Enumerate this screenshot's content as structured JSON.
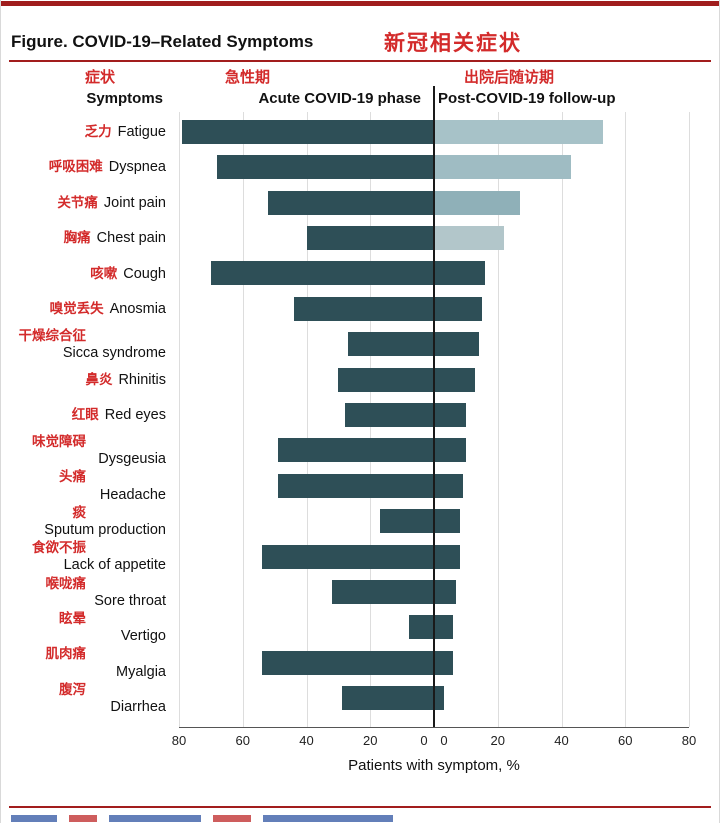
{
  "figure": {
    "title_en": "Figure. COVID-19–Related Symptoms",
    "title_zh": "新冠相关症状"
  },
  "headers": {
    "symptoms_zh": "症状",
    "symptoms_en": "Symptoms",
    "acute_zh": "急性期",
    "acute_en": "Acute COVID-19 phase",
    "followup_zh": "出院后随访期",
    "followup_en": "Post-COVID-19 follow-up"
  },
  "colors": {
    "accent_red": "#a21d1d",
    "chinese_red": "#d32b2b",
    "acute_bar": "#2e4f57",
    "axis": "#1a1a1a",
    "gridline": "#dddddd"
  },
  "chart_data": {
    "type": "bar",
    "orientation": "horizontal-diverging",
    "title": "Figure. COVID-19–Related Symptoms",
    "title_zh": "新冠相关症状",
    "xlabel": "Patients with symptom, %",
    "axis_max": 80,
    "x_ticks_left": [
      80,
      60,
      40,
      20,
      0
    ],
    "x_ticks_right": [
      0,
      20,
      40,
      60,
      80
    ],
    "series": [
      "Acute COVID-19 phase",
      "Post-COVID-19 follow-up"
    ],
    "grid": true,
    "rows": [
      {
        "zh": "乏力",
        "en": "Fatigue",
        "acute": 79,
        "followup": 53,
        "followup_color": "#a7c2c8",
        "stacked": false
      },
      {
        "zh": "呼吸困难",
        "en": "Dyspnea",
        "acute": 68,
        "followup": 43,
        "followup_color": "#9fbcc3",
        "stacked": false
      },
      {
        "zh": "关节痛",
        "en": "Joint pain",
        "acute": 52,
        "followup": 27,
        "followup_color": "#8fb0b8",
        "stacked": false
      },
      {
        "zh": "胸痛",
        "en": "Chest pain",
        "acute": 40,
        "followup": 22,
        "followup_color": "#b2c6ca",
        "stacked": false
      },
      {
        "zh": "咳嗽",
        "en": "Cough",
        "acute": 70,
        "followup": 16,
        "followup_color": "#2e4f57",
        "stacked": false
      },
      {
        "zh": "嗅觉丢失",
        "en": "Anosmia",
        "acute": 44,
        "followup": 15,
        "followup_color": "#2e4f57",
        "stacked": false
      },
      {
        "zh": "干燥综合征",
        "en": "Sicca syndrome",
        "acute": 27,
        "followup": 14,
        "followup_color": "#2e4f57",
        "stacked": true
      },
      {
        "zh": "鼻炎",
        "en": "Rhinitis",
        "acute": 30,
        "followup": 13,
        "followup_color": "#2e4f57",
        "stacked": false
      },
      {
        "zh": "红眼",
        "en": "Red eyes",
        "acute": 28,
        "followup": 10,
        "followup_color": "#2e4f57",
        "stacked": false
      },
      {
        "zh": "味觉障碍",
        "en": "Dysgeusia",
        "acute": 49,
        "followup": 10,
        "followup_color": "#2e4f57",
        "stacked": true
      },
      {
        "zh": "头痛",
        "en": "Headache",
        "acute": 49,
        "followup": 9,
        "followup_color": "#2e4f57",
        "stacked": true
      },
      {
        "zh": "痰",
        "en": "Sputum production",
        "acute": 17,
        "followup": 8,
        "followup_color": "#2e4f57",
        "stacked": true
      },
      {
        "zh": "食欲不振",
        "en": "Lack of appetite",
        "acute": 54,
        "followup": 8,
        "followup_color": "#2e4f57",
        "stacked": true
      },
      {
        "zh": "喉咙痛",
        "en": "Sore throat",
        "acute": 32,
        "followup": 7,
        "followup_color": "#2e4f57",
        "stacked": true
      },
      {
        "zh": "眩晕",
        "en": "Vertigo",
        "acute": 8,
        "followup": 6,
        "followup_color": "#2e4f57",
        "stacked": true
      },
      {
        "zh": "肌肉痛",
        "en": "Myalgia",
        "acute": 54,
        "followup": 6,
        "followup_color": "#2e4f57",
        "stacked": true
      },
      {
        "zh": "腹泻",
        "en": "Diarrhea",
        "acute": 29,
        "followup": 3,
        "followup_color": "#2e4f57",
        "stacked": true
      }
    ]
  }
}
